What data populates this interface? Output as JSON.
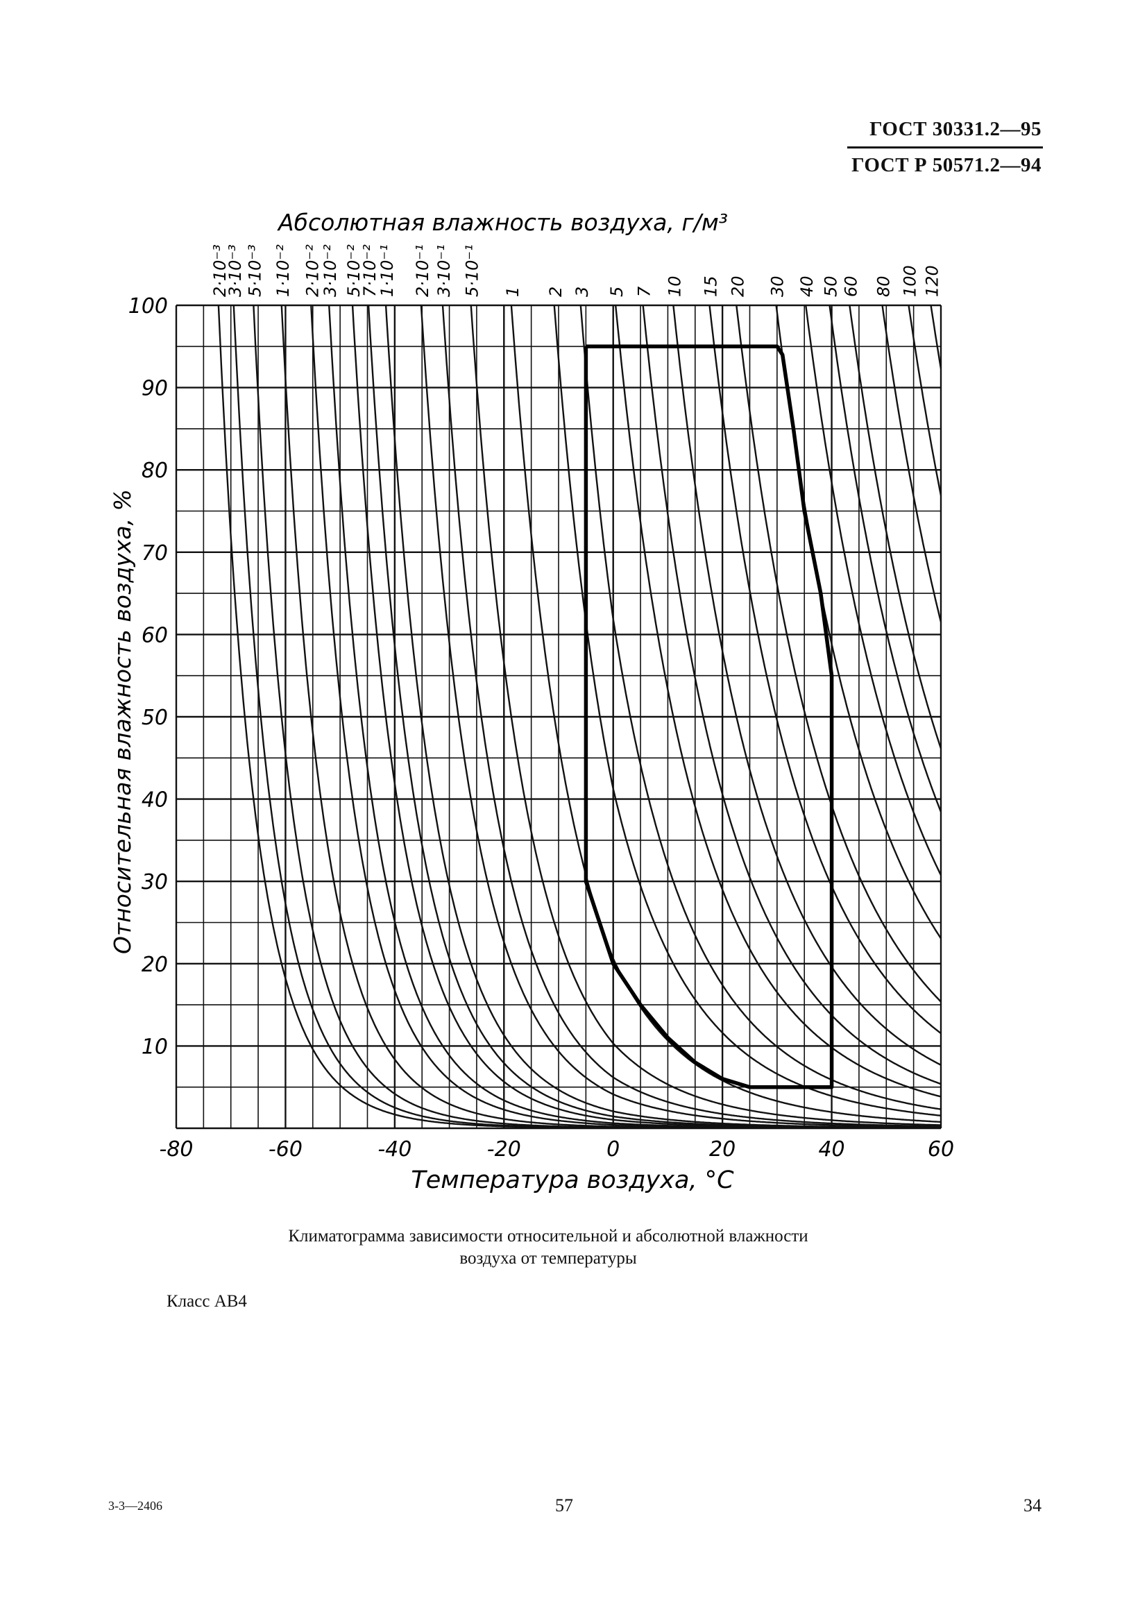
{
  "header": {
    "line1": "ГОСТ 30331.2—95",
    "line2": "ГОСТ Р 50571.2—94"
  },
  "chart_data": {
    "type": "line",
    "title": "Абсолютная влажность воздуха, г/м³",
    "xlabel": "Температура воздуха, °С",
    "ylabel": "Относительная влажность воздуха, %",
    "xlim": [
      -80,
      60
    ],
    "ylim": [
      0,
      100
    ],
    "x_ticks": [
      "-80",
      "-60",
      "-40",
      "-20",
      "0",
      "20",
      "40",
      "60"
    ],
    "y_ticks": [
      "10",
      "20",
      "30",
      "40",
      "50",
      "60",
      "70",
      "80",
      "90",
      "100"
    ],
    "grid": true,
    "curve_family": "absolute humidity isolines, g/m³",
    "absolute_humidity_labels": [
      "2·10⁻³",
      "3·10⁻³",
      "5·10⁻³",
      "1·10⁻²",
      "2·10⁻²",
      "3·10⁻²",
      "5·10⁻²",
      "7·10⁻²",
      "1·10⁻¹",
      "2·10⁻¹",
      "3·10⁻¹",
      "5·10⁻¹",
      "1",
      "2",
      "3",
      "5",
      "7",
      "10",
      "15",
      "20",
      "30",
      "40",
      "50",
      "60",
      "80",
      "100",
      "120"
    ],
    "absolute_humidity_values": [
      0.002,
      0.003,
      0.005,
      0.01,
      0.02,
      0.03,
      0.05,
      0.07,
      0.1,
      0.2,
      0.3,
      0.5,
      1,
      2,
      3,
      5,
      7,
      10,
      15,
      20,
      30,
      40,
      50,
      60,
      80,
      100,
      120
    ],
    "series": [
      {
        "boundary_x": [
          -5,
          30,
          31,
          33,
          35,
          38,
          40,
          40,
          38,
          33,
          28,
          25,
          20,
          15,
          10,
          5,
          0,
          -3,
          -5,
          -5
        ],
        "boundary_y": [
          95,
          95,
          94,
          85,
          75,
          65,
          55,
          5,
          5,
          5,
          5,
          5,
          6,
          8,
          11,
          15,
          20,
          26,
          30,
          95
        ]
      }
    ]
  },
  "caption": {
    "line1": "Климатограмма зависимости относительной и абсолютной влажности",
    "line2": "воздуха от температуры"
  },
  "class_label": "Класс АВ4",
  "footer": {
    "left": "3-3—2406",
    "center": "57",
    "right": "34"
  }
}
